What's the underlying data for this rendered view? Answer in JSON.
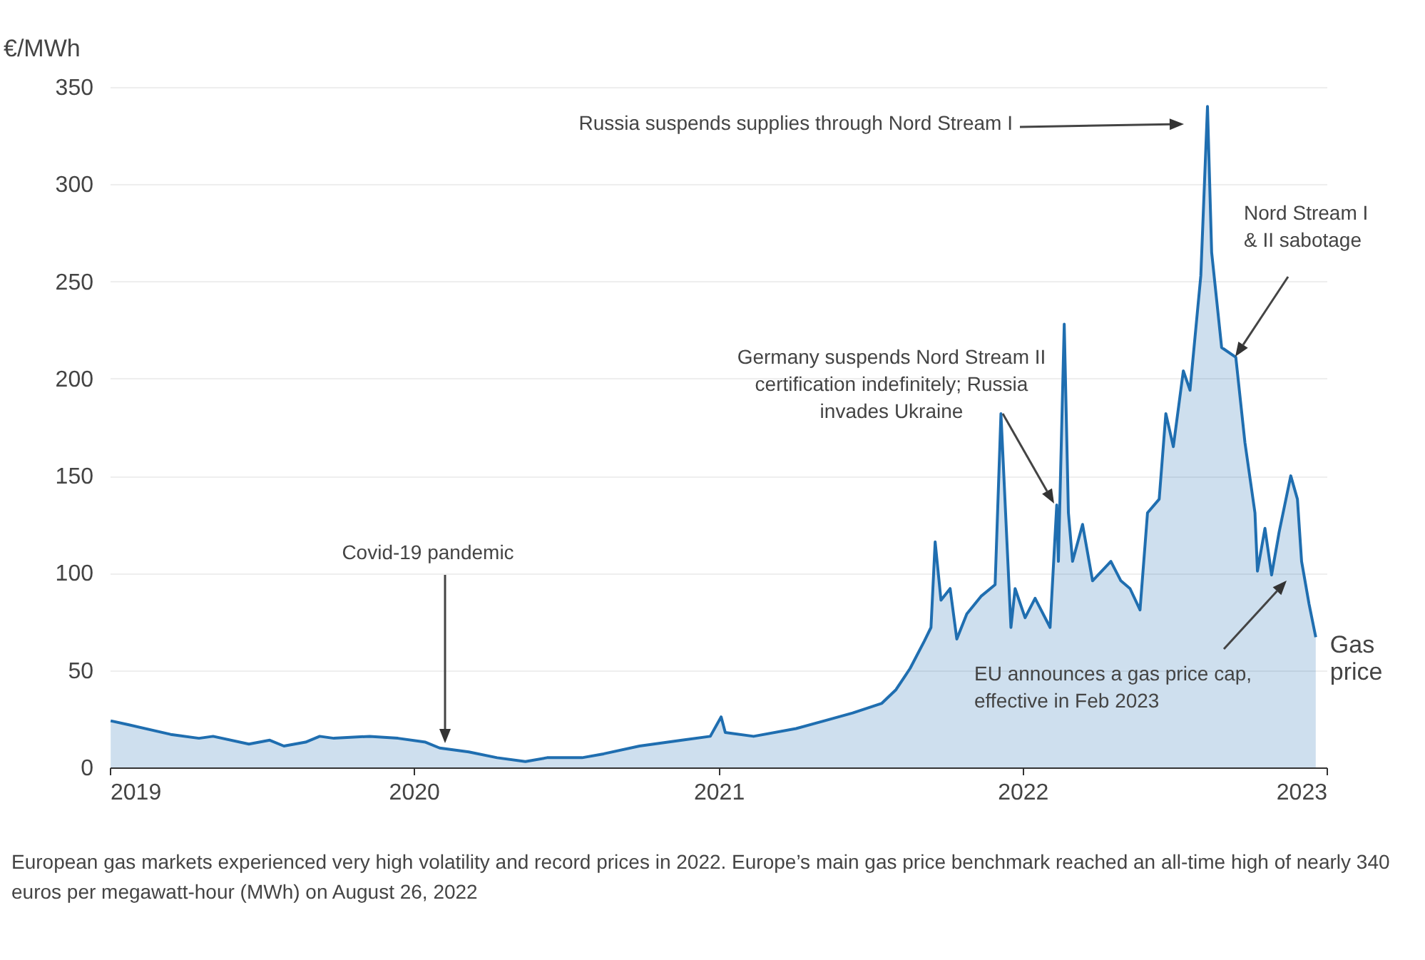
{
  "chart_data": {
    "type": "area",
    "ylabel": "€/MWh",
    "annotations": [
      "Russia suspends supplies through Nord Stream I",
      "Nord Stream I & II sabotage",
      "Germany suspends Nord Stream II certification indefinitely; Russia invades Ukraine",
      "Covid-19 pandemic",
      "EU announces a gas price cap, effective in Feb 2023",
      "European gas markets experienced very high volatility and record prices in 2022. Europe’s main gas price benchmark reached an all-time high of nearly 340 euros per megawatt-hour (MWh) on August 26, 2022"
    ],
    "x": [
      "2019-01-02",
      "2019-01-23",
      "2019-03-15",
      "2019-04-18",
      "2019-05-05",
      "2019-06-17",
      "2019-07-12",
      "2019-07-29",
      "2019-08-24",
      "2019-09-10",
      "2019-09-27",
      "2019-11-09",
      "2019-12-13",
      "2020-01-15",
      "2020-02-01",
      "2020-03-07",
      "2020-04-10",
      "2020-05-14",
      "2020-06-09",
      "2020-07-21",
      "2020-08-16",
      "2020-09-28",
      "2020-11-18",
      "2020-12-22",
      "2021-01-04",
      "2021-01-09",
      "2021-02-12",
      "2021-04-04",
      "2021-05-08",
      "2021-06-11",
      "2021-07-16",
      "2021-08-02",
      "2021-08-19",
      "2021-09-05",
      "2021-09-13",
      "2021-09-18",
      "2021-09-25",
      "2021-10-06",
      "2021-10-14",
      "2021-10-26",
      "2021-11-12",
      "2021-11-29",
      "2021-12-06",
      "2021-12-18",
      "2021-12-23",
      "2022-01-04",
      "2022-01-16",
      "2022-02-03",
      "2022-02-11",
      "2022-02-13",
      "2022-02-20",
      "2022-02-25",
      "2022-03-02",
      "2022-03-14",
      "2022-03-26",
      "2022-04-17",
      "2022-04-29",
      "2022-05-10",
      "2022-05-22",
      "2022-05-31",
      "2022-06-14",
      "2022-06-22",
      "2022-07-01",
      "2022-07-13",
      "2022-07-21",
      "2022-08-03",
      "2022-08-11",
      "2022-08-16",
      "2022-08-28",
      "2022-09-14",
      "2022-09-25",
      "2022-10-07",
      "2022-10-10",
      "2022-10-19",
      "2022-10-27",
      "2022-11-05",
      "2022-11-19",
      "2022-11-27",
      "2022-12-02",
      "2022-12-11",
      "2022-12-19"
    ],
    "series": [
      {
        "name": "Gas price",
        "color": "#1f6eb0",
        "values": [
          24,
          22,
          17,
          15,
          16,
          12,
          14,
          11,
          13,
          16,
          15,
          16,
          15,
          13,
          10,
          8,
          5,
          3,
          5,
          5,
          7,
          11,
          14,
          16,
          26,
          18,
          16,
          20,
          24,
          28,
          33,
          40,
          51,
          65,
          72,
          116,
          86,
          92,
          66,
          79,
          88,
          94,
          182,
          72,
          92,
          77,
          87,
          72,
          135,
          106,
          228,
          131,
          106,
          125,
          96,
          106,
          96,
          92,
          81,
          131,
          138,
          182,
          165,
          204,
          194,
          253,
          340,
          265,
          216,
          211,
          167,
          131,
          101,
          123,
          99,
          121,
          150,
          138,
          106,
          84,
          67
        ]
      }
    ],
    "xlim": [
      "2019",
      "2023"
    ],
    "xticks": [
      "2019",
      "2020",
      "2021",
      "2022",
      "2023"
    ],
    "ylim": [
      0,
      350
    ],
    "yticks": [
      0,
      50,
      100,
      150,
      200,
      250,
      300,
      350
    ],
    "grid": "y",
    "legend": false
  }
}
